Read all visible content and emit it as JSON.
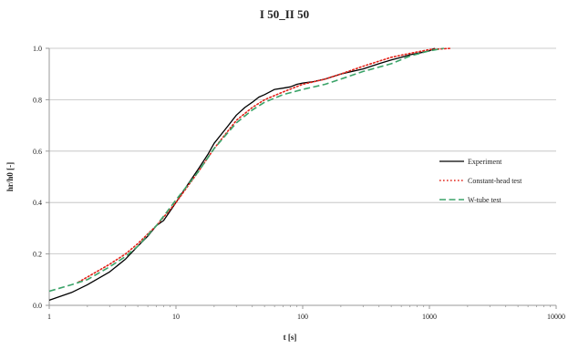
{
  "chart_data": {
    "type": "line",
    "title": "I 50_II 50",
    "xlabel": "t [s]",
    "ylabel": "hr/h0   [-]",
    "x_scale": "log",
    "xlim": [
      1,
      10000
    ],
    "ylim": [
      0.0,
      1.0
    ],
    "x_ticks": [
      1,
      10,
      100,
      1000,
      10000
    ],
    "x_tick_labels": [
      "1",
      "10",
      "100",
      "1000",
      "10000"
    ],
    "y_ticks": [
      0.0,
      0.2,
      0.4,
      0.6,
      0.8,
      1.0
    ],
    "y_tick_labels": [
      "0.0",
      "0.2",
      "0.4",
      "0.6",
      "0.8",
      "1.0"
    ],
    "grid": "horizontal",
    "legend_position": "right",
    "series": [
      {
        "name": "Experiment",
        "color": "#000000",
        "style": "solid",
        "x": [
          1,
          1.5,
          2,
          3,
          4,
          5,
          6,
          7,
          8,
          10,
          12,
          15,
          18,
          20,
          25,
          30,
          35,
          40,
          45,
          50,
          60,
          70,
          80,
          90,
          100,
          120,
          150,
          200,
          300,
          400,
          500,
          600,
          700,
          800,
          900,
          1000,
          1100
        ],
        "y": [
          0.02,
          0.05,
          0.08,
          0.13,
          0.18,
          0.23,
          0.27,
          0.31,
          0.33,
          0.4,
          0.46,
          0.53,
          0.59,
          0.63,
          0.69,
          0.74,
          0.77,
          0.79,
          0.81,
          0.82,
          0.84,
          0.845,
          0.85,
          0.86,
          0.865,
          0.87,
          0.88,
          0.9,
          0.92,
          0.94,
          0.955,
          0.965,
          0.975,
          0.98,
          0.985,
          0.99,
          1.0
        ]
      },
      {
        "name": "Constant-head test",
        "color": "#e2231a",
        "style": "dotted",
        "x": [
          1.7,
          2,
          3,
          4,
          5,
          7,
          10,
          15,
          20,
          30,
          40,
          50,
          70,
          100,
          150,
          200,
          300,
          400,
          500,
          700,
          1000,
          1500
        ],
        "y": [
          0.09,
          0.11,
          0.16,
          0.2,
          0.24,
          0.31,
          0.4,
          0.52,
          0.61,
          0.72,
          0.77,
          0.8,
          0.83,
          0.86,
          0.88,
          0.9,
          0.93,
          0.95,
          0.965,
          0.98,
          0.995,
          1.0
        ]
      },
      {
        "name": "W-tube test",
        "color": "#3aa368",
        "style": "dashed",
        "x": [
          1,
          1.5,
          2,
          3,
          4,
          5,
          7,
          10,
          15,
          20,
          30,
          40,
          50,
          70,
          100,
          150,
          200,
          300,
          500,
          700,
          1000,
          1300
        ],
        "y": [
          0.055,
          0.08,
          0.1,
          0.15,
          0.19,
          0.23,
          0.31,
          0.41,
          0.52,
          0.61,
          0.71,
          0.76,
          0.79,
          0.82,
          0.84,
          0.86,
          0.88,
          0.91,
          0.94,
          0.97,
          0.99,
          1.0
        ]
      }
    ]
  }
}
